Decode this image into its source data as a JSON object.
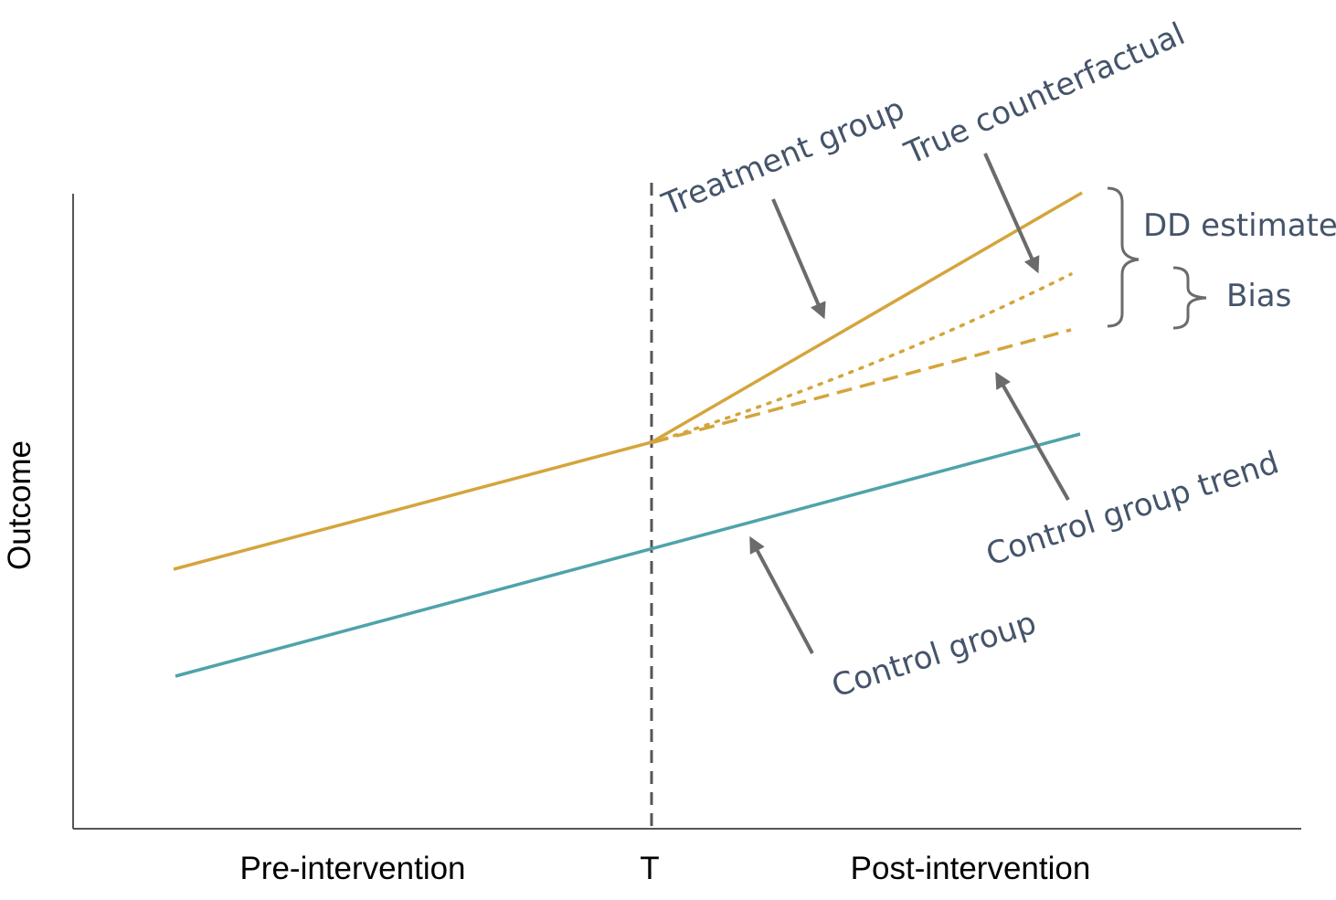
{
  "axes": {
    "y_label": "Outcome",
    "x_labels": {
      "pre": "Pre-intervention",
      "t": "T",
      "post": "Post-intervention"
    }
  },
  "annotations": {
    "treatment_group": "Treatment group",
    "true_counterfactual": "True counterfactual",
    "control_group_trend": "Control group trend",
    "control_group": "Control group",
    "dd_estimate": "DD estimate",
    "bias": "Bias"
  },
  "colors": {
    "treatment": "#d4a53c",
    "control": "#4fa3aa",
    "arrow": "#6b6b6b",
    "annotation_text": "#44546a",
    "axis": "#555555"
  }
}
